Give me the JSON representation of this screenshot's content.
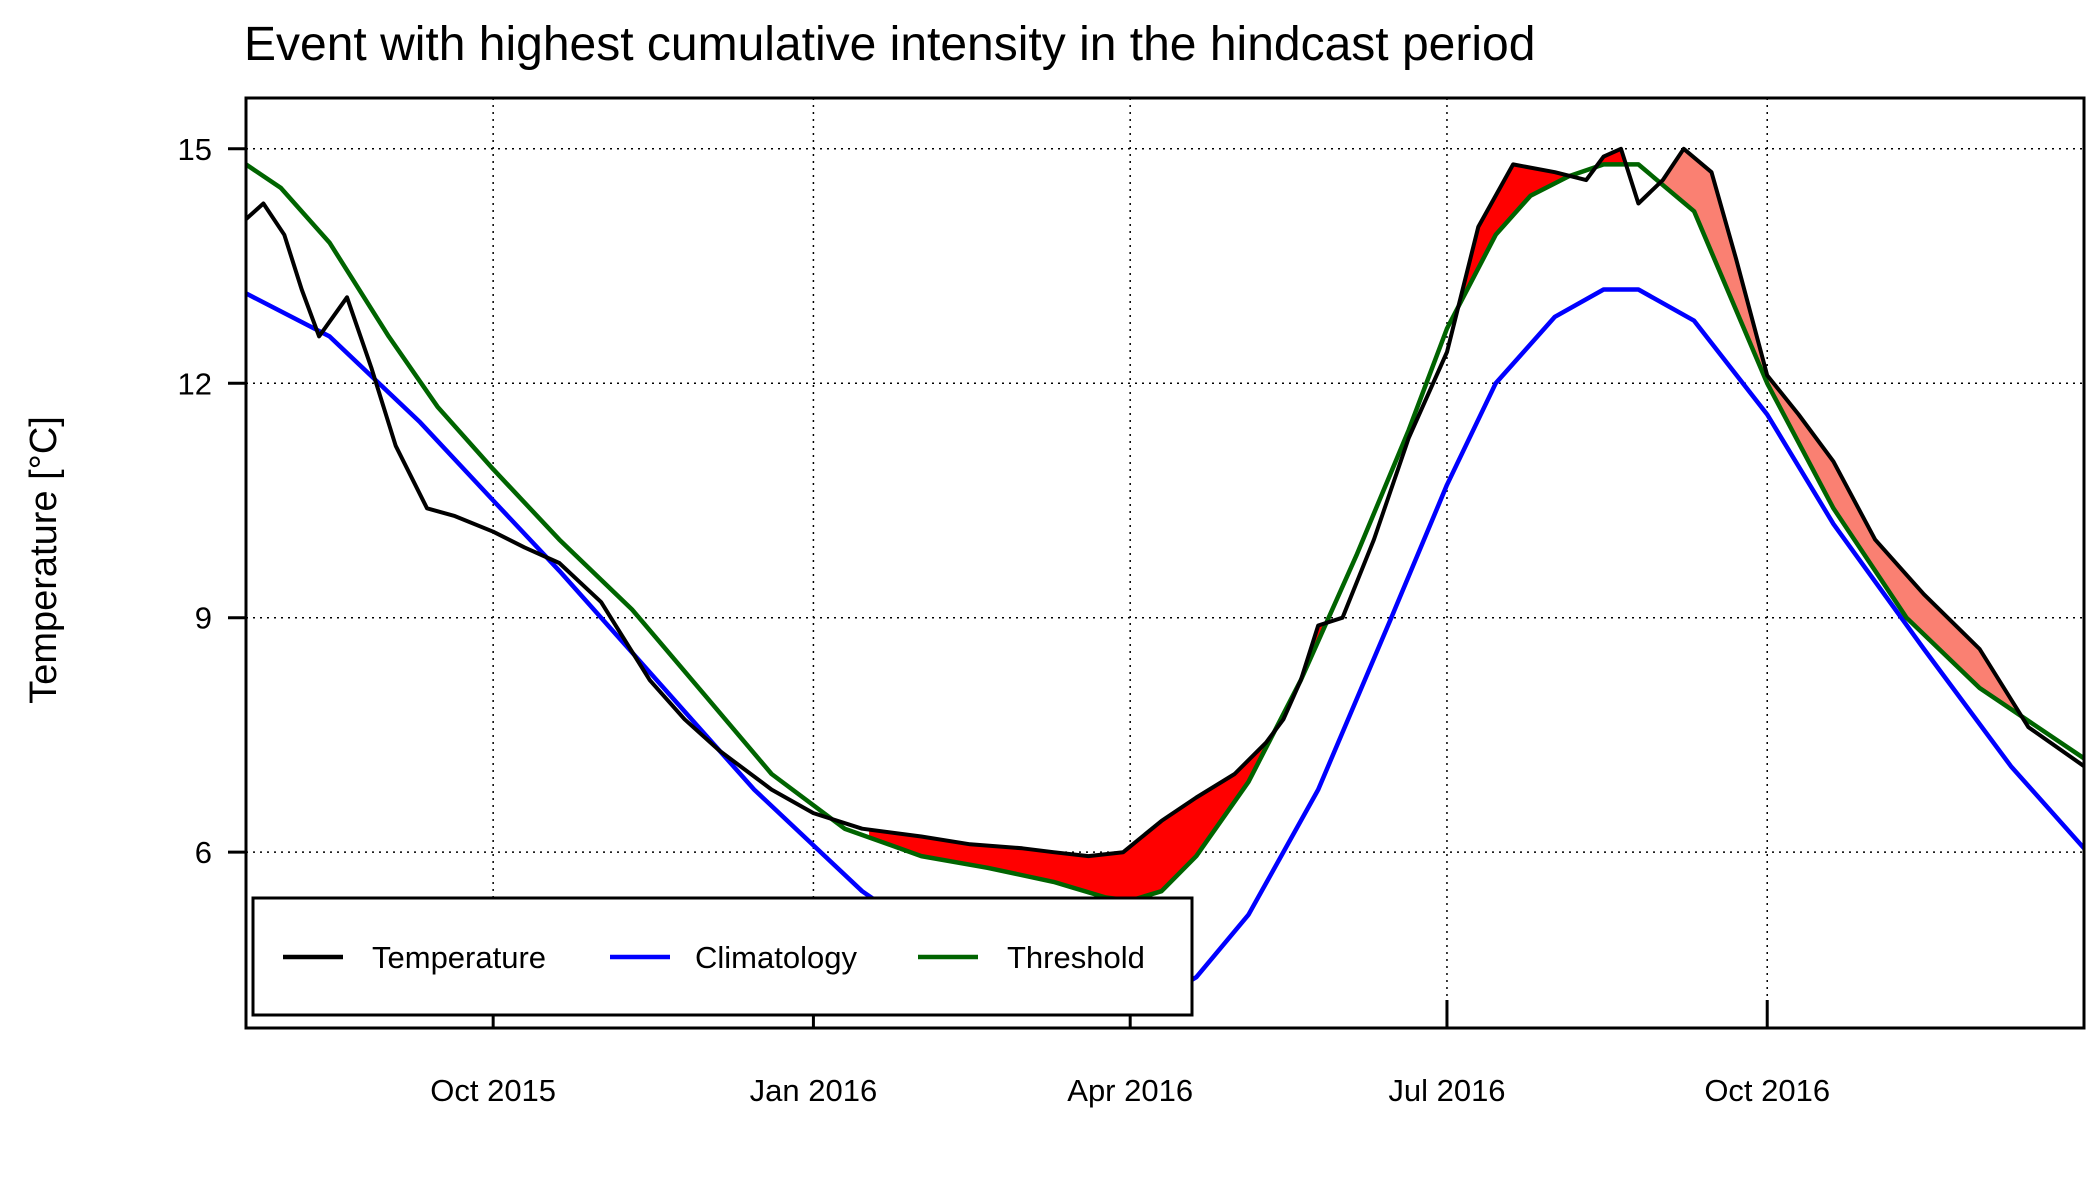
{
  "chart_data": {
    "type": "line",
    "title": "Event with highest cumulative intensity in the hindcast period",
    "ylabel": "Temperature [°C]",
    "xlabel": "",
    "x_range": [
      "2015-07-22",
      "2016-12-31"
    ],
    "ylim": [
      3.75,
      15.65
    ],
    "y_ticks": [
      6,
      9,
      12,
      15
    ],
    "x_ticks": [
      {
        "date": "2015-10-01",
        "label": "Oct 2015"
      },
      {
        "date": "2016-01-01",
        "label": "Jan 2016"
      },
      {
        "date": "2016-04-01",
        "label": "Apr 2016"
      },
      {
        "date": "2016-07-01",
        "label": "Jul 2016"
      },
      {
        "date": "2016-10-01",
        "label": "Oct 2016"
      }
    ],
    "grid": true,
    "legend_position": "bottom-left",
    "legend": [
      "Temperature",
      "Climatology",
      "Threshold"
    ],
    "colors": {
      "Temperature": "#000000",
      "Climatology": "#0000ff",
      "Threshold": "#006400",
      "event_fill": "#ff0000",
      "other_fill": "#fa8072"
    },
    "series": [
      {
        "name": "Temperature",
        "x": [
          "2015-07-22",
          "2015-07-27",
          "2015-08-02",
          "2015-08-07",
          "2015-08-12",
          "2015-08-20",
          "2015-08-27",
          "2015-09-03",
          "2015-09-12",
          "2015-09-20",
          "2015-10-01",
          "2015-10-10",
          "2015-10-20",
          "2015-11-01",
          "2015-11-15",
          "2015-11-25",
          "2015-12-05",
          "2015-12-20",
          "2016-01-01",
          "2016-01-15",
          "2016-02-01",
          "2016-02-15",
          "2016-03-01",
          "2016-03-10",
          "2016-03-20",
          "2016-03-30",
          "2016-04-10",
          "2016-04-20",
          "2016-05-01",
          "2016-05-10",
          "2016-05-15",
          "2016-05-20",
          "2016-05-25",
          "2016-06-01",
          "2016-06-10",
          "2016-06-20",
          "2016-07-01",
          "2016-07-10",
          "2016-07-20",
          "2016-08-01",
          "2016-08-10",
          "2016-08-15",
          "2016-08-20",
          "2016-08-25",
          "2016-09-01",
          "2016-09-07",
          "2016-09-15",
          "2016-09-22",
          "2016-10-01",
          "2016-10-10",
          "2016-10-20",
          "2016-11-01",
          "2016-11-15",
          "2016-12-01",
          "2016-12-15",
          "2016-12-31"
        ],
        "values": [
          14.1,
          14.3,
          13.9,
          13.2,
          12.6,
          13.1,
          12.2,
          11.2,
          10.4,
          10.3,
          10.1,
          9.9,
          9.7,
          9.2,
          8.2,
          7.7,
          7.3,
          6.8,
          6.5,
          6.3,
          6.2,
          6.1,
          6.05,
          6.0,
          5.95,
          6.0,
          6.4,
          6.7,
          7.0,
          7.4,
          7.7,
          8.2,
          8.9,
          9.0,
          10.0,
          11.3,
          12.4,
          14.0,
          14.8,
          14.7,
          14.6,
          14.9,
          15.0,
          14.3,
          14.6,
          15.0,
          14.7,
          13.6,
          12.1,
          11.6,
          11.0,
          10.0,
          9.3,
          8.6,
          7.6,
          7.1
        ]
      },
      {
        "name": "Climatology",
        "x": [
          "2015-07-22",
          "2015-08-15",
          "2015-09-10",
          "2015-10-01",
          "2015-10-20",
          "2015-11-15",
          "2015-12-15",
          "2016-01-15",
          "2016-02-15",
          "2016-03-01",
          "2016-03-15",
          "2016-03-25",
          "2016-04-05",
          "2016-04-20",
          "2016-05-05",
          "2016-05-25",
          "2016-06-15",
          "2016-07-01",
          "2016-07-15",
          "2016-08-01",
          "2016-08-15",
          "2016-08-25",
          "2016-09-10",
          "2016-10-01",
          "2016-10-20",
          "2016-11-15",
          "2016-12-10",
          "2016-12-31"
        ],
        "values": [
          13.15,
          12.6,
          11.5,
          10.5,
          9.6,
          8.3,
          6.8,
          5.5,
          4.55,
          4.18,
          3.98,
          3.94,
          4.0,
          4.4,
          5.2,
          6.8,
          9.0,
          10.7,
          12.0,
          12.85,
          13.2,
          13.2,
          12.8,
          11.6,
          10.2,
          8.6,
          7.1,
          6.05
        ]
      },
      {
        "name": "Threshold",
        "x": [
          "2015-07-22",
          "2015-08-01",
          "2015-08-15",
          "2015-09-01",
          "2015-09-15",
          "2015-10-01",
          "2015-10-20",
          "2015-11-10",
          "2015-12-01",
          "2015-12-20",
          "2016-01-10",
          "2016-02-01",
          "2016-02-20",
          "2016-03-10",
          "2016-03-25",
          "2016-04-01",
          "2016-04-10",
          "2016-04-20",
          "2016-05-05",
          "2016-05-20",
          "2016-06-05",
          "2016-06-20",
          "2016-07-01",
          "2016-07-15",
          "2016-07-25",
          "2016-08-05",
          "2016-08-15",
          "2016-08-25",
          "2016-09-10",
          "2016-10-01",
          "2016-10-20",
          "2016-11-10",
          "2016-12-01",
          "2016-12-31"
        ],
        "values": [
          14.8,
          14.5,
          13.8,
          12.6,
          11.7,
          10.9,
          10.0,
          9.1,
          8.0,
          7.0,
          6.3,
          5.95,
          5.8,
          5.62,
          5.42,
          5.38,
          5.5,
          5.95,
          6.9,
          8.2,
          9.8,
          11.4,
          12.7,
          13.9,
          14.4,
          14.65,
          14.8,
          14.8,
          14.2,
          12.0,
          10.4,
          9.0,
          8.1,
          7.2
        ]
      }
    ],
    "shaded_events": [
      {
        "label": "",
        "start": "2016-01-17",
        "end": "2016-08-23",
        "fill": "event_fill"
      },
      {
        "label": "",
        "start": "2016-08-30",
        "end": "2016-12-31",
        "fill": "other_fill"
      }
    ]
  }
}
